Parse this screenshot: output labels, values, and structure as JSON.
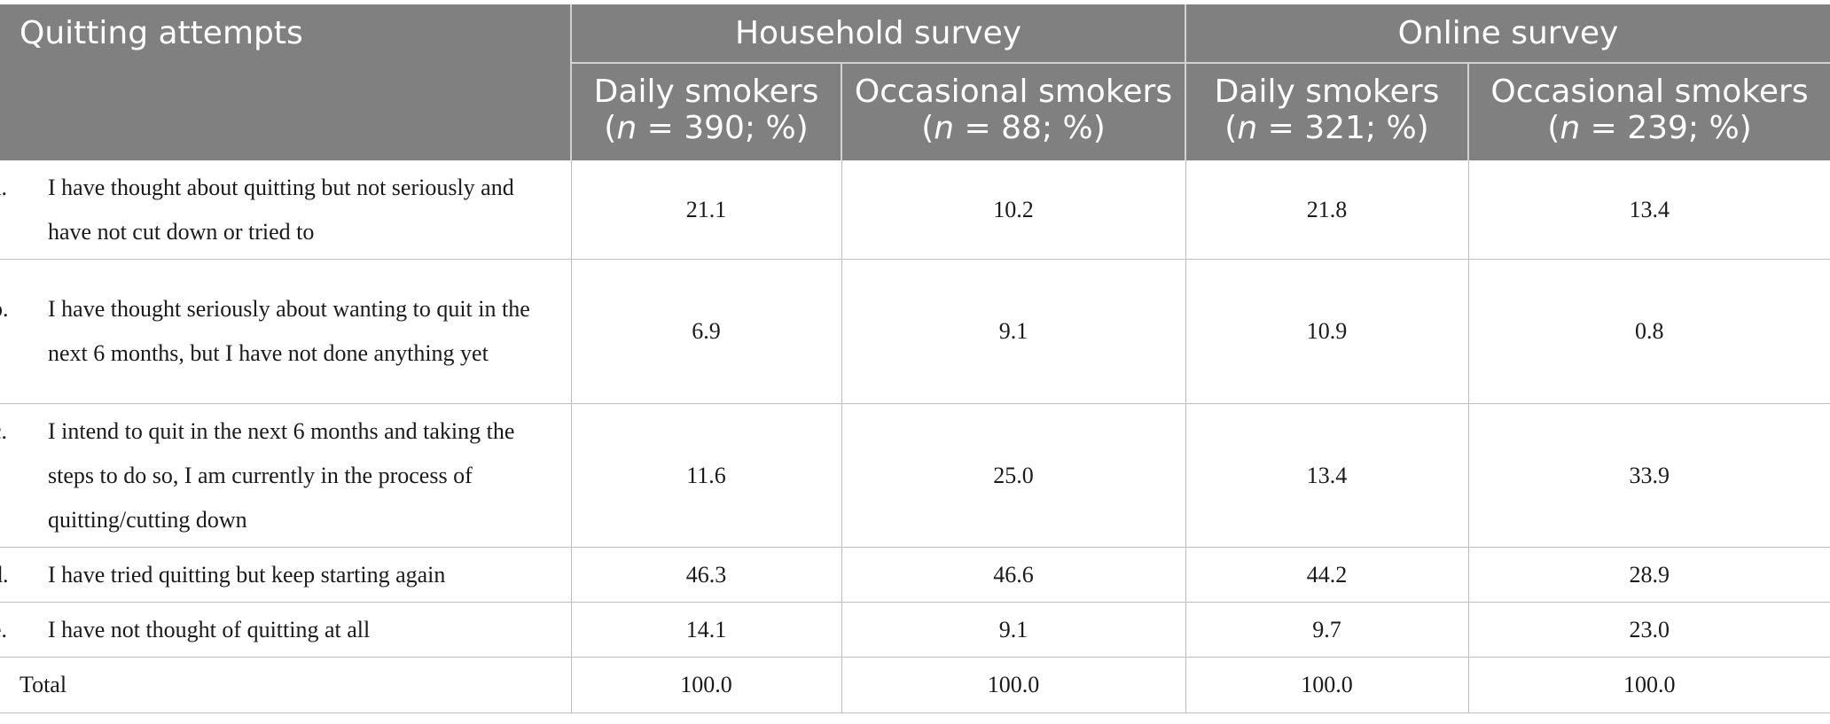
{
  "table": {
    "stub_header": "Quitting attempts",
    "groups": [
      {
        "label": "Household survey",
        "columns": [
          {
            "name": "Daily smokers",
            "n_prefix": "(",
            "n_symbol": "n",
            "n_suffix": " = 390; %)"
          },
          {
            "name": "Occasional smokers",
            "n_prefix": "(",
            "n_symbol": "n",
            "n_suffix": " = 88; %)"
          }
        ]
      },
      {
        "label": "Online survey",
        "columns": [
          {
            "name": "Daily smokers",
            "n_prefix": "(",
            "n_symbol": "n",
            "n_suffix": " = 321; %)"
          },
          {
            "name": "Occasional smokers",
            "n_prefix": "(",
            "n_symbol": "n",
            "n_suffix": " = 239; %)"
          }
        ]
      }
    ],
    "rows": [
      {
        "letter": "a.",
        "label": "I have thought about quitting but not seriously and have not cut down or tried to",
        "values": [
          "21.1",
          "10.2",
          "21.8",
          "13.4"
        ]
      },
      {
        "letter": "b.",
        "label": "I have thought seriously about wanting to quit in the next 6 months, but I have not done anything yet",
        "values": [
          "6.9",
          "9.1",
          "10.9",
          "0.8"
        ]
      },
      {
        "letter": "c.",
        "label": "I intend to quit in the next 6 months and taking the steps to do so, I am currently in the process of quitting/cutting down",
        "values": [
          "11.6",
          "25.0",
          "13.4",
          "33.9"
        ]
      },
      {
        "letter": "d.",
        "label": "I have tried quitting but keep starting again",
        "values": [
          "46.3",
          "46.6",
          "44.2",
          "28.9"
        ]
      },
      {
        "letter": "e.",
        "label": "I have not thought of quitting at all",
        "values": [
          "14.1",
          "9.1",
          "9.7",
          "23.0"
        ]
      }
    ],
    "total": {
      "label": "Total",
      "values": [
        "100.0",
        "100.0",
        "100.0",
        "100.0"
      ]
    }
  }
}
